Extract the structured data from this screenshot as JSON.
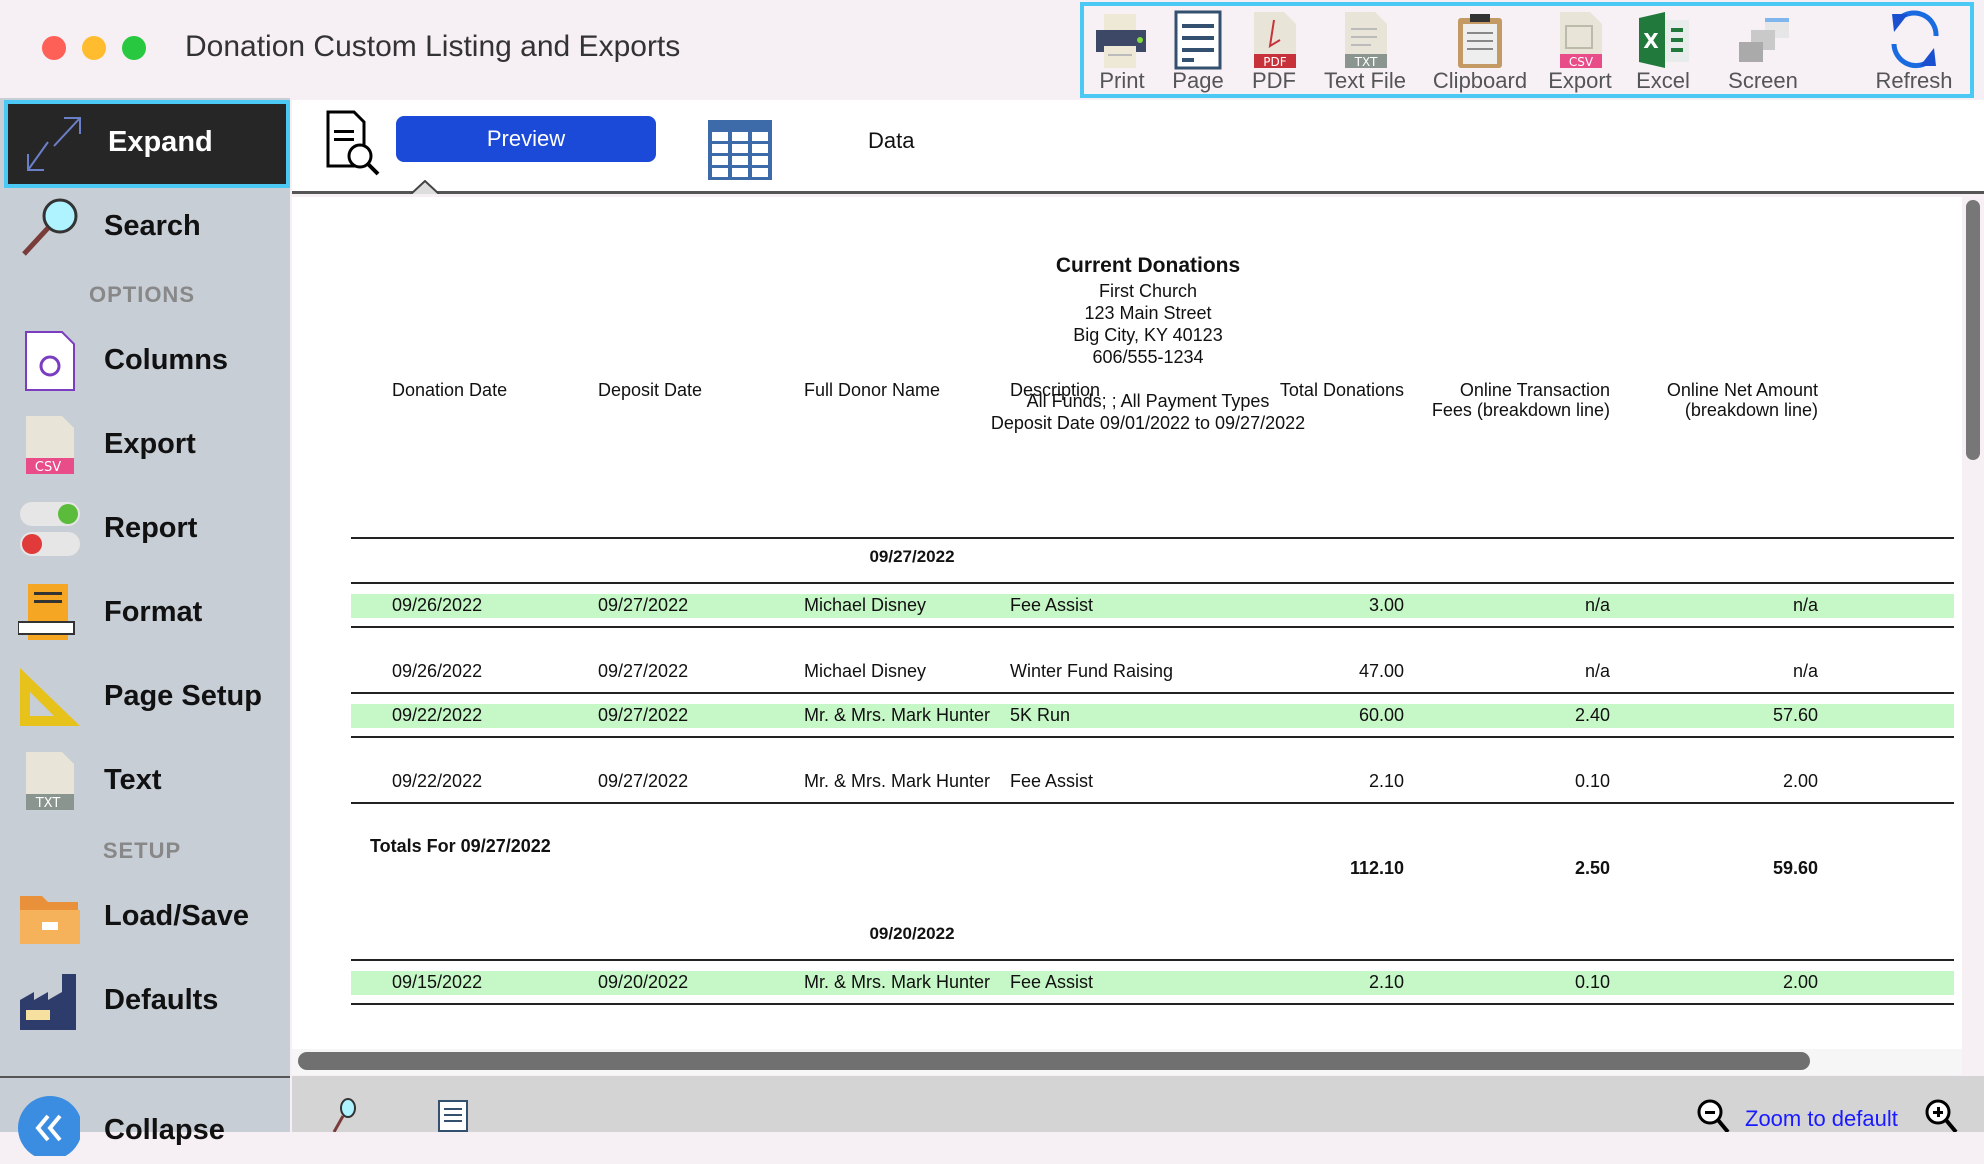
{
  "window": {
    "title": "Donation Custom Listing and Exports"
  },
  "toolbar": [
    {
      "label": "Print",
      "icon": "printer-icon"
    },
    {
      "label": "Page",
      "icon": "page-icon"
    },
    {
      "label": "PDF",
      "icon": "pdf-icon"
    },
    {
      "label": "Text File",
      "icon": "txt-file-icon"
    },
    {
      "label": "Clipboard",
      "icon": "clipboard-icon"
    },
    {
      "label": "Export",
      "icon": "csv-icon"
    },
    {
      "label": "Excel",
      "icon": "excel-icon"
    },
    {
      "label": "Screen",
      "icon": "screen-icon"
    },
    {
      "label": "Refresh",
      "icon": "refresh-icon"
    }
  ],
  "sidebar": {
    "expand": "Expand",
    "search": "Search",
    "options_header": "OPTIONS",
    "columns": "Columns",
    "export": "Export",
    "report": "Report",
    "format": "Format",
    "page_setup": "Page Setup",
    "text": "Text",
    "setup_header": "SETUP",
    "load_save": "Load/Save",
    "defaults": "Defaults",
    "collapse": "Collapse"
  },
  "tabs": {
    "preview": "Preview",
    "data": "Data"
  },
  "report": {
    "title": "Current Donations",
    "org": "First Church",
    "address": "123 Main Street",
    "city": "Big City, KY  40123",
    "phone": "606/555-1234",
    "filter": "All Funds; ; All Payment Types",
    "date_range": "Deposit Date 09/01/2022 to 09/27/2022",
    "columns": [
      [
        "Donation Date"
      ],
      [
        "Deposit Date"
      ],
      [
        "Full Donor Name"
      ],
      [
        "Description"
      ],
      [
        "Total Donations"
      ],
      [
        "Online Transaction",
        "Fees (breakdown line)"
      ],
      [
        "Online Net Amount",
        "(breakdown line)"
      ]
    ],
    "groups": [
      {
        "date": "09/27/2022",
        "rows": [
          [
            "09/26/2022",
            "09/27/2022",
            "Michael Disney",
            "Fee Assist",
            "3.00",
            "n/a",
            "n/a"
          ],
          [
            "09/26/2022",
            "09/27/2022",
            "Michael Disney",
            "Winter Fund Raising",
            "47.00",
            "n/a",
            "n/a"
          ],
          [
            "09/22/2022",
            "09/27/2022",
            "Mr. & Mrs. Mark Hunter",
            "5K Run",
            "60.00",
            "2.40",
            "57.60"
          ],
          [
            "09/22/2022",
            "09/27/2022",
            "Mr. & Mrs. Mark Hunter",
            "Fee Assist",
            "2.10",
            "0.10",
            "2.00"
          ]
        ],
        "totals_label": "Totals For 09/27/2022",
        "totals": [
          "112.10",
          "2.50",
          "59.60"
        ]
      },
      {
        "date": "09/20/2022",
        "rows": [
          [
            "09/15/2022",
            "09/20/2022",
            "Mr. & Mrs. Mark Hunter",
            "Fee Assist",
            "2.10",
            "0.10",
            "2.00"
          ]
        ]
      }
    ]
  },
  "bottom": {
    "zoom_default": "Zoom to default"
  },
  "colors": {
    "accent": "#1b49d8",
    "highlight_row": "#c6f7c6",
    "focus_border": "#4cc8f5"
  }
}
